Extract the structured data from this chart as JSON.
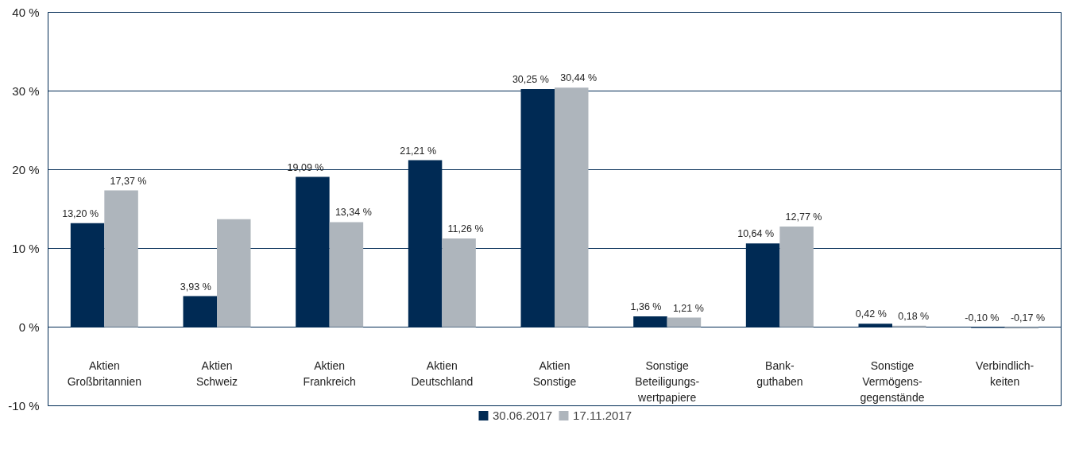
{
  "chart_data": {
    "type": "bar",
    "categories": [
      "Aktien\nGroßbritannien",
      "Aktien\nSchweiz",
      "Aktien\nFrankreich",
      "Aktien\nDeutschland",
      "Aktien\nSonstige",
      "Sonstige\nBeteiligungs-\nwertpapiere",
      "Bank-\nguthaben",
      "Sonstige\nVermögens-\ngegenstände",
      "Verbindlich-\nkeiten"
    ],
    "series": [
      {
        "name": "30.06.2017",
        "color": "#002a54",
        "values": [
          13.2,
          3.93,
          19.09,
          21.21,
          30.25,
          1.36,
          10.64,
          0.42,
          -0.1
        ],
        "value_labels": [
          "13,20 %",
          "3,93 %",
          "19,09 %",
          "21,21 %",
          "30,25 %",
          "1,36 %",
          "10,64 %",
          "0,42 %",
          "-0,10 %"
        ]
      },
      {
        "name": "17.11.2017",
        "color": "#aeb5bc",
        "values": [
          17.37,
          13.7,
          13.34,
          11.26,
          30.44,
          1.21,
          12.77,
          0.18,
          -0.17
        ],
        "value_labels": [
          "17,37 %",
          null,
          "13,34 %",
          "11,26 %",
          "30,44 %",
          "1,21 %",
          "12,77 %",
          "0,18 %",
          "-0,17 %"
        ]
      }
    ],
    "ylim": [
      -10,
      40
    ],
    "yticks": [
      {
        "value": -10,
        "label": "-10 %"
      },
      {
        "value": 0,
        "label": "0 %"
      },
      {
        "value": 10,
        "label": "10 %"
      },
      {
        "value": 20,
        "label": "20 %"
      },
      {
        "value": 30,
        "label": "30 %"
      },
      {
        "value": 40,
        "label": "40 %"
      }
    ],
    "grid": "y",
    "legend": "bottom"
  }
}
